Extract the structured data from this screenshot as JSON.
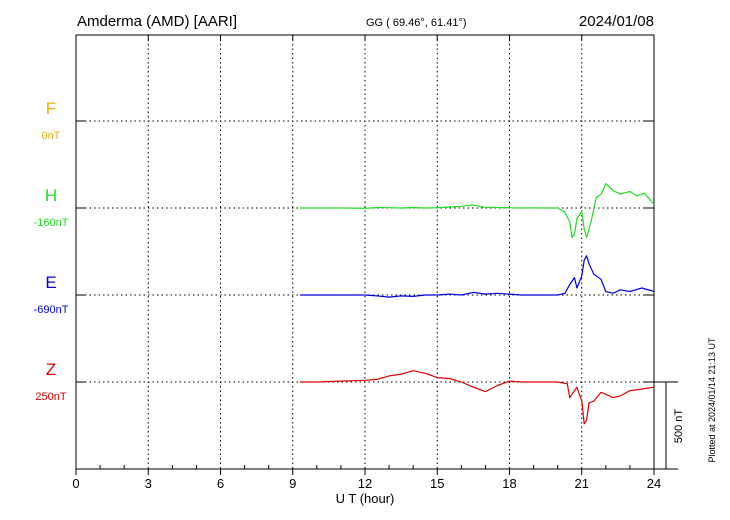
{
  "header": {
    "station": "Amderma (AMD)  [AARI]",
    "coords": "GG ( 69.46°,  61.41°)",
    "date": "2024/01/08"
  },
  "plotted_note": "Plotted at 2024/01/14 21:13 UT",
  "colors": {
    "F": "#f0b000",
    "H": "#22dd22",
    "E": "#0000dd",
    "Z": "#dd0000"
  },
  "chart_data": {
    "type": "line",
    "xlabel": "U T (hour)",
    "xlim": [
      0,
      24
    ],
    "xticks": [
      "0",
      "3",
      "6",
      "9",
      "12",
      "15",
      "18",
      "21",
      "24"
    ],
    "scale_bar": {
      "label": "500 nT",
      "value_nT": 500
    },
    "components": [
      {
        "name": "F",
        "baseline": "0nT",
        "x": [],
        "y": []
      },
      {
        "name": "H",
        "baseline": "-160nT",
        "x": [
          9.3,
          10,
          11,
          12,
          12.5,
          13,
          13.5,
          14,
          14.5,
          15,
          15.5,
          16,
          16.2,
          16.5,
          16.8,
          17,
          17.5,
          18,
          18.5,
          19,
          19.5,
          20,
          20.3,
          20.5,
          20.6,
          20.7,
          20.8,
          21,
          21.1,
          21.2,
          21.4,
          21.6,
          21.8,
          22,
          22.3,
          22.6,
          23,
          23.3,
          23.6,
          24
        ],
        "y": [
          0,
          0,
          0,
          -2,
          3,
          2,
          0,
          3,
          0,
          2,
          6,
          10,
          13,
          18,
          8,
          4,
          3,
          1,
          0,
          1,
          0,
          0,
          -25,
          -80,
          -170,
          -150,
          -60,
          -20,
          -120,
          -170,
          -70,
          60,
          80,
          140,
          100,
          80,
          95,
          70,
          85,
          20
        ]
      },
      {
        "name": "E",
        "baseline": "-690nT",
        "x": [
          9.3,
          10,
          11,
          12,
          12.5,
          13,
          13.5,
          14,
          14.5,
          15,
          15.5,
          16,
          16.5,
          17,
          17.5,
          18,
          18.5,
          19,
          19.5,
          20,
          20.3,
          20.5,
          20.7,
          20.8,
          21,
          21.1,
          21.2,
          21.3,
          21.5,
          21.8,
          22,
          22.3,
          22.6,
          23,
          23.5,
          24
        ],
        "y": [
          0,
          0,
          0,
          0,
          -5,
          -12,
          -5,
          -8,
          0,
          0,
          5,
          0,
          15,
          5,
          10,
          5,
          0,
          0,
          0,
          0,
          10,
          60,
          100,
          40,
          110,
          200,
          225,
          180,
          120,
          90,
          20,
          10,
          30,
          20,
          40,
          20
        ]
      },
      {
        "name": "Z",
        "baseline": "250nT",
        "x": [
          9.3,
          10,
          11,
          12,
          12.5,
          13,
          13.5,
          14,
          14.5,
          15,
          15.5,
          16,
          16.5,
          17,
          17.5,
          18,
          18.5,
          19,
          19.5,
          20,
          20.4,
          20.5,
          20.6,
          20.8,
          21,
          21.1,
          21.2,
          21.3,
          21.5,
          21.8,
          22,
          22.3,
          22.6,
          23,
          23.5,
          24
        ],
        "y": [
          0,
          0,
          5,
          10,
          15,
          35,
          45,
          65,
          50,
          25,
          20,
          0,
          -30,
          -55,
          -20,
          5,
          0,
          0,
          0,
          0,
          -10,
          -90,
          -70,
          -30,
          -110,
          -240,
          -220,
          -120,
          -110,
          -60,
          -70,
          -90,
          -80,
          -50,
          -40,
          -30
        ]
      }
    ]
  }
}
